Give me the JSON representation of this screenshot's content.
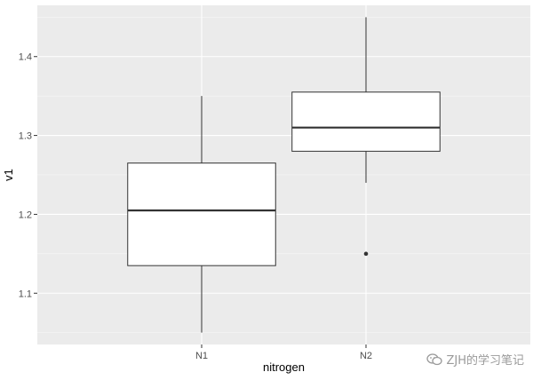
{
  "chart_data": {
    "type": "boxplot",
    "xlabel": "nitrogen",
    "ylabel": "v1",
    "ylim": [
      1.035,
      1.465
    ],
    "yticks": [
      1.1,
      1.2,
      1.3,
      1.4
    ],
    "ytick_labels": [
      "1.1",
      "1.2",
      "1.3",
      "1.4"
    ],
    "categories": [
      "N1",
      "N2"
    ],
    "boxes": [
      {
        "category": "N1",
        "whisker_low": 1.05,
        "q1": 1.135,
        "median": 1.205,
        "q3": 1.265,
        "whisker_high": 1.35,
        "outliers": []
      },
      {
        "category": "N2",
        "whisker_low": 1.24,
        "q1": 1.28,
        "median": 1.31,
        "q3": 1.355,
        "whisker_high": 1.45,
        "outliers": [
          1.15
        ]
      }
    ],
    "colors": {
      "panel": "#ebebeb",
      "grid_major": "#ffffff",
      "box_fill": "#ffffff",
      "box_line": "#333333"
    }
  },
  "watermark": {
    "text": "ZJH的学习笔记",
    "icon": "wechat-icon"
  }
}
